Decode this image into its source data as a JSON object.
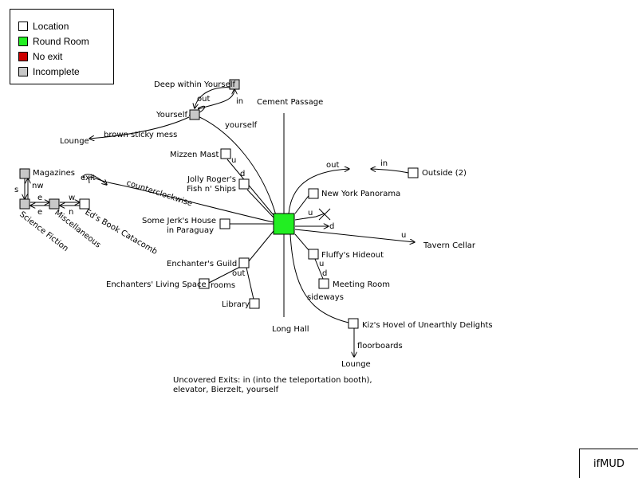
{
  "legend": {
    "items": [
      {
        "label": "Location",
        "color": "#ffffff"
      },
      {
        "label": "Round Room",
        "color": "#22ee22"
      },
      {
        "label": "No exit",
        "color": "#cc0000"
      },
      {
        "label": "Incomplete",
        "color": "#c8c8c8"
      }
    ]
  },
  "brand": "ifMUD",
  "note": "Uncovered Exits: in (into the teleportation booth), elevator, Bierzelt, yourself",
  "rooms": {
    "round_room": "Round Room",
    "cement_passage": "Cement Passage",
    "long_hall": "Long Hall",
    "deep_within": "Deep within Yourself",
    "yourself": "Yourself",
    "lounge_top": "Lounge",
    "mizzen_mast": "Mizzen Mast",
    "jolly_rogers_1": "Jolly Roger's",
    "jolly_rogers_2": "Fish n' Ships",
    "magazines": "Magazines",
    "science_fiction": "Science Fiction",
    "miscellaneous": "Miscellaneous",
    "eds_book": "Ed's Book Catacomb",
    "some_jerk_1": "Some Jerk's House",
    "some_jerk_2": "in Paraguay",
    "enchanters_guild": "Enchanter's Guild",
    "enchanters_living": "Enchanters' Living Space",
    "library": "Library",
    "outside": "Outside (2)",
    "new_york": "New York Panorama",
    "tavern_cellar": "Tavern Cellar",
    "fluffys": "Fluffy's Hideout",
    "meeting_room": "Meeting Room",
    "kizs_hovel": "Kiz's Hovel of Unearthly Delights",
    "lounge_bottom": "Lounge"
  },
  "exits": {
    "out_deep": "out",
    "in_deep": "in",
    "yourself": "yourself",
    "brown_sticky": "brown sticky mess",
    "u_mizzen": "u",
    "d_jolly": "d",
    "exit_ed": "exit",
    "counterclockwise": "counterclockwise",
    "nw": "nw",
    "s": "s",
    "e1": "e",
    "e2": "e",
    "w": "w",
    "n": "n",
    "out_outside": "out",
    "in_outside": "in",
    "u_x": "u",
    "d_x": "d",
    "u_tavern": "u",
    "u_fluffy": "u",
    "d_fluffy": "d",
    "out_guild": "out",
    "rooms": "rooms",
    "sideways": "sideways",
    "floorboards": "floorboards"
  }
}
